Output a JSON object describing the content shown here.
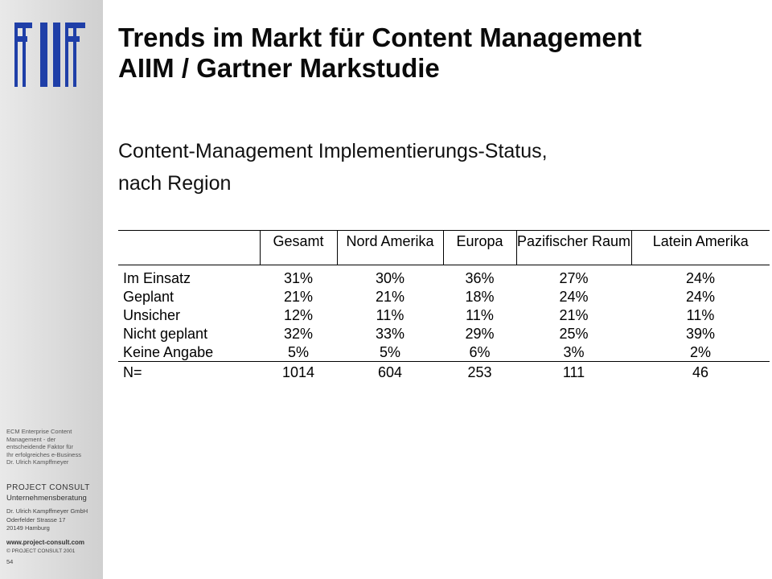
{
  "slide": {
    "title_line1": "Trends im Markt für Content Management",
    "title_line2": "AIIM / Gartner Markstudie",
    "subtitle_line1": "Content-Management Implementierungs-Status,",
    "subtitle_line2": "nach Region"
  },
  "table": {
    "headers": [
      "",
      "Gesamt",
      "Nord Amerika",
      "Europa",
      "Pazifischer Raum",
      "Latein Amerika"
    ],
    "rows": [
      {
        "label": "Im Einsatz",
        "values": [
          "31%",
          "30%",
          "36%",
          "27%",
          "24%"
        ]
      },
      {
        "label": "Geplant",
        "values": [
          "21%",
          "21%",
          "18%",
          "24%",
          "24%"
        ]
      },
      {
        "label": "Unsicher",
        "values": [
          "12%",
          "11%",
          "11%",
          "21%",
          "11%"
        ]
      },
      {
        "label": "Nicht geplant",
        "values": [
          "32%",
          "33%",
          "29%",
          "25%",
          "39%"
        ]
      },
      {
        "label": "Keine Angabe",
        "values": [
          "5%",
          "5%",
          "6%",
          "3%",
          "2%"
        ]
      }
    ],
    "total": {
      "label": "N=",
      "values": [
        "1014",
        "604",
        "253",
        "111",
        "46"
      ]
    }
  },
  "sidebar": {
    "logo_color": "#1f3fa8",
    "desc_lines": [
      "ECM Enterprise Content",
      "Management - der",
      "entscheidende Faktor für",
      "Ihr erfolgreiches e-Business",
      "Dr. Ulrich Kampffmeyer"
    ],
    "brand": "PROJECT CONSULT",
    "brand_sub": "Unternehmensberatung",
    "address_lines": [
      "Dr. Ulrich Kampffmeyer GmbH",
      "Oderfelder Strasse 17",
      "20149 Hamburg"
    ],
    "website": "www.project-consult.com",
    "copyright": "© PROJECT CONSULT 2001",
    "page_number": "54"
  }
}
